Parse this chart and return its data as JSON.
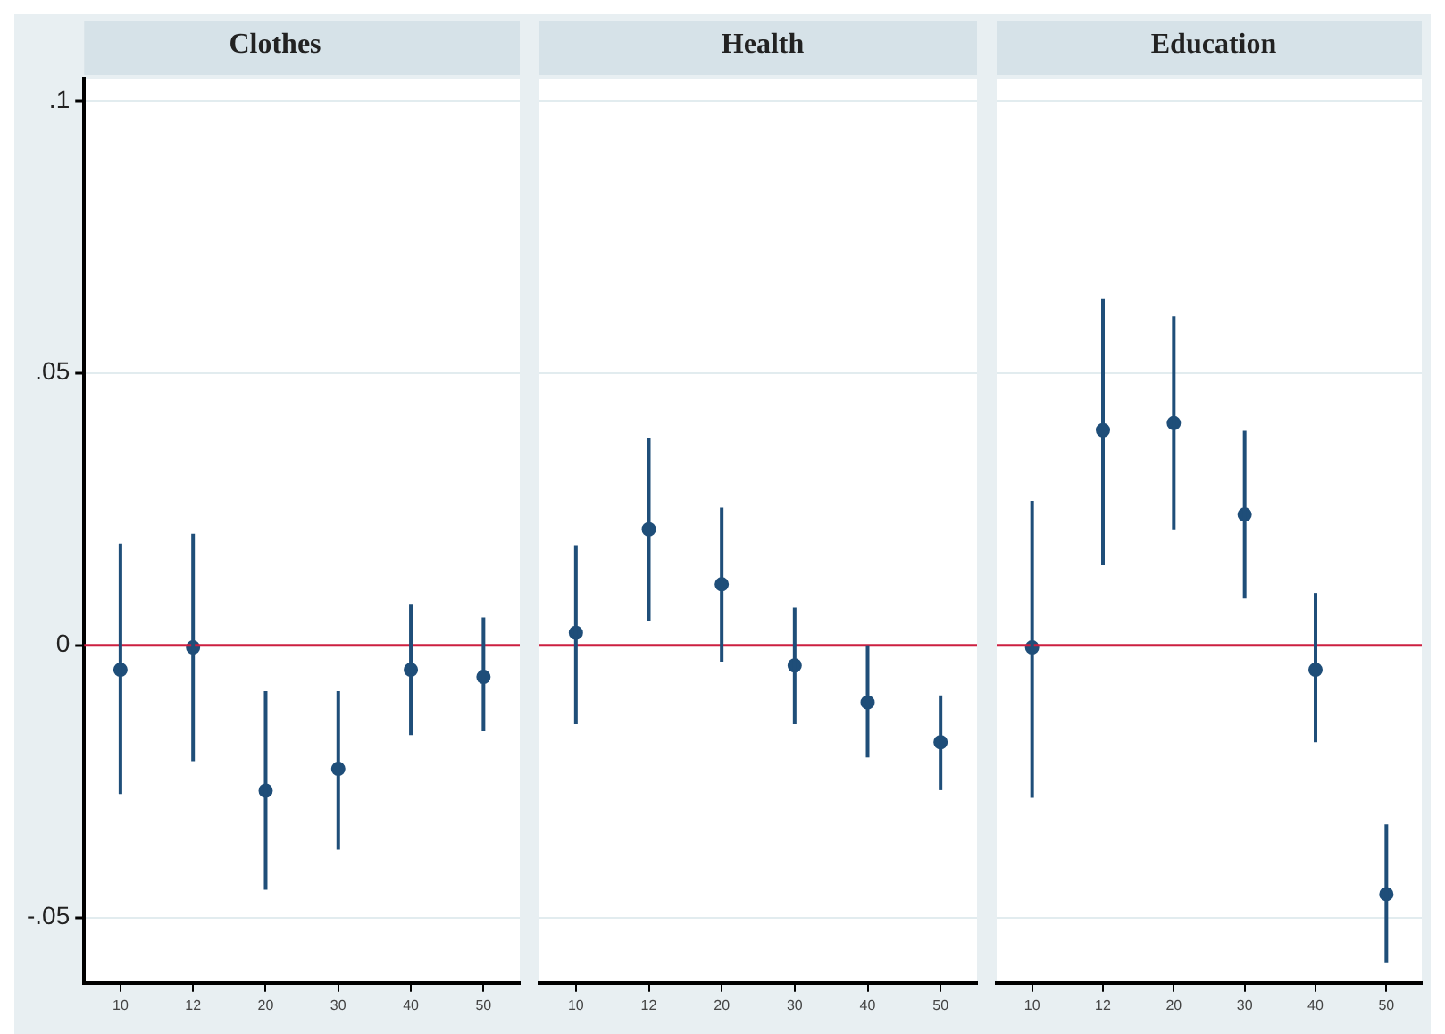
{
  "chart_data": [
    {
      "type": "scatter",
      "title": "Clothes",
      "categories": [
        "10",
        "12",
        "20",
        "30",
        "40",
        "50"
      ],
      "series": [
        {
          "color": "#1f4e79",
          "values": [
            -0.0045,
            -0.0004,
            -0.0267,
            -0.0227,
            -0.0045,
            -0.0058
          ],
          "errors": [
            [
              -0.0273,
              0.0187
            ],
            [
              -0.0213,
              0.0205
            ],
            [
              -0.0449,
              -0.0084
            ],
            [
              -0.0375,
              -0.0084
            ],
            [
              -0.0165,
              0.0076
            ],
            [
              -0.0158,
              0.0051
            ]
          ]
        }
      ],
      "ylim": [
        -0.062,
        0.104
      ],
      "yticks": [
        {
          "value": -0.05,
          "label": "-.05"
        },
        0,
        {
          "value": 0.05,
          "label": ".05"
        },
        {
          "value": 0.1,
          "label": ".1"
        }
      ],
      "ref_lines": [
        {
          "axis": "y",
          "value": 0,
          "color": "#cc1f40"
        }
      ],
      "grid": "y",
      "marker": "circle",
      "legend": false
    },
    {
      "type": "scatter",
      "title": "Health",
      "categories": [
        "10",
        "12",
        "20",
        "30",
        "40",
        "50"
      ],
      "series": [
        {
          "color": "#1f4e79",
          "values": [
            0.0023,
            0.0213,
            0.0112,
            -0.0037,
            -0.0105,
            -0.0178
          ],
          "errors": [
            [
              -0.0145,
              0.0184
            ],
            [
              0.0045,
              0.038
            ],
            [
              -0.003,
              0.0253
            ],
            [
              -0.0145,
              0.0069
            ],
            [
              -0.0206,
              0
            ],
            [
              -0.0266,
              -0.0092
            ]
          ]
        }
      ],
      "ylim": [
        -0.062,
        0.104
      ],
      "yticks": [
        -0.05,
        0,
        0.05,
        0.1
      ],
      "tick_labels": "x",
      "ref_lines": [
        {
          "axis": "y",
          "value": 0,
          "color": "#cc1f40"
        }
      ],
      "grid": "y",
      "marker": "circle",
      "legend": false
    },
    {
      "type": "scatter",
      "title": "Education",
      "categories": [
        "10",
        "12",
        "20",
        "30",
        "40",
        "50"
      ],
      "series": [
        {
          "color": "#1f4e79",
          "values": [
            -0.0004,
            0.0395,
            0.0408,
            0.024,
            -0.0045,
            -0.0457
          ],
          "errors": [
            [
              -0.028,
              0.0265
            ],
            [
              0.0147,
              0.0636
            ],
            [
              0.0213,
              0.0604
            ],
            [
              0.0086,
              0.0394
            ],
            [
              -0.0178,
              0.0096
            ],
            [
              -0.0582,
              -0.0329
            ]
          ]
        }
      ],
      "ylim": [
        -0.062,
        0.104
      ],
      "yticks": [
        -0.05,
        0,
        0.05,
        0.1
      ],
      "tick_labels": "x",
      "ref_lines": [
        {
          "axis": "y",
          "value": 0,
          "color": "#cc1f40"
        }
      ],
      "grid": "y",
      "marker": "circle",
      "legend": false
    }
  ]
}
